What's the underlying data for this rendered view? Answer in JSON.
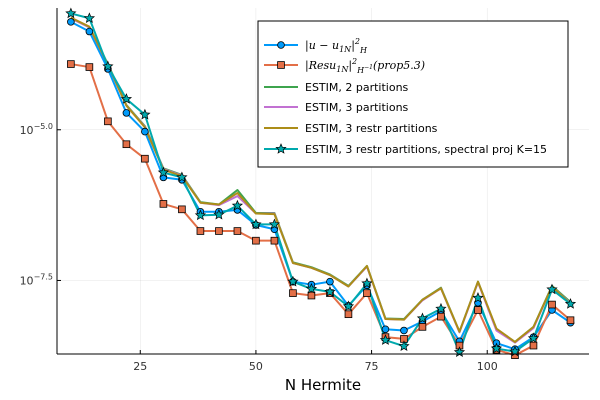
{
  "chart_data": {
    "type": "line",
    "xlabel": "N Hermite",
    "ylabel": "",
    "y_scale": "log10",
    "xlim": [
      7,
      122
    ],
    "ylim_log10": [
      -8.72,
      -2.98
    ],
    "x_ticks": [
      25,
      50,
      75,
      100
    ],
    "y_ticks": [
      {
        "log10": -5,
        "base": "10",
        "exp": "−5.0"
      },
      {
        "log10": -7.5,
        "base": "10",
        "exp": "−7.5"
      }
    ],
    "grid": true,
    "legend_position": "top-right",
    "x": [
      10,
      14,
      18,
      22,
      26,
      30,
      34,
      38,
      42,
      46,
      50,
      54,
      58,
      62,
      66,
      70,
      74,
      78,
      82,
      86,
      90,
      94,
      98,
      102,
      106,
      110,
      114,
      118
    ],
    "series": [
      {
        "label_parts": [
          "|u − u",
          "1N",
          "|",
          "2",
          "H"
        ],
        "color": "#009AFA",
        "marker": "circle",
        "line_width": 2,
        "values_log10": [
          -3.21,
          -3.37,
          -3.99,
          -4.72,
          -5.03,
          -5.79,
          -5.83,
          -6.36,
          -6.36,
          -6.33,
          -6.58,
          -6.65,
          -7.52,
          -7.57,
          -7.52,
          -7.92,
          -7.58,
          -8.31,
          -8.33,
          -8.18,
          -8.01,
          -8.51,
          -7.87,
          -8.54,
          -8.64,
          -8.44,
          -7.99,
          -8.2
        ]
      },
      {
        "label_parts": [
          "|Resu",
          "1N",
          "|",
          "2",
          "H",
          "−1",
          "(prop5.3)"
        ],
        "color": "#E36F47",
        "marker": "square",
        "line_width": 2,
        "values_log10": [
          -3.91,
          -3.96,
          -4.86,
          -5.24,
          -5.48,
          -6.23,
          -6.32,
          -6.68,
          -6.68,
          -6.68,
          -6.84,
          -6.84,
          -7.71,
          -7.75,
          -7.71,
          -8.06,
          -7.71,
          -8.44,
          -8.47,
          -8.27,
          -8.1,
          -8.58,
          -7.99,
          -8.65,
          -8.74,
          -8.58,
          -7.9,
          -8.16
        ]
      },
      {
        "label_parts": [
          "ESTIM, 2 partitions"
        ],
        "color": "#3EA44E",
        "marker": "none",
        "line_width": 2,
        "values_log10": [
          -3.15,
          -3.3,
          -3.91,
          -4.59,
          -4.94,
          -5.64,
          -5.75,
          -6.2,
          -6.24,
          -6.0,
          -6.38,
          -6.38,
          -7.2,
          -7.28,
          -7.4,
          -7.59,
          -7.26,
          -8.13,
          -8.14,
          -7.82,
          -7.62,
          -8.35,
          -7.52,
          -8.31,
          -8.52,
          -8.27,
          -7.59,
          -7.86
        ]
      },
      {
        "label_parts": [
          "ESTIM, 3 partitions"
        ],
        "color": "#C271D2",
        "marker": "none",
        "line_width": 2,
        "values_log10": [
          -3.15,
          -3.3,
          -3.92,
          -4.6,
          -4.95,
          -5.65,
          -5.76,
          -6.21,
          -6.25,
          -6.1,
          -6.39,
          -6.39,
          -7.21,
          -7.29,
          -7.41,
          -7.6,
          -7.27,
          -8.14,
          -8.15,
          -7.83,
          -7.63,
          -8.36,
          -7.53,
          -8.33,
          -8.53,
          -8.29,
          -7.6,
          -7.88
        ]
      },
      {
        "label_parts": [
          "ESTIM, 3 restr partitions"
        ],
        "color": "#AC8D18",
        "marker": "none",
        "line_width": 2,
        "values_log10": [
          -3.14,
          -3.29,
          -3.92,
          -4.6,
          -4.96,
          -5.66,
          -5.77,
          -6.21,
          -6.24,
          -6.05,
          -6.39,
          -6.4,
          -7.21,
          -7.29,
          -7.41,
          -7.6,
          -7.26,
          -8.14,
          -8.15,
          -7.82,
          -7.63,
          -8.35,
          -7.52,
          -8.3,
          -8.52,
          -8.27,
          -7.6,
          -7.89
        ]
      },
      {
        "label_parts": [
          "ESTIM, 3 restr partitions, spectral proj K=15"
        ],
        "color": "#00A9AD",
        "marker": "star",
        "line_width": 2,
        "values_log10": [
          -3.07,
          -3.15,
          -3.95,
          -4.49,
          -4.75,
          -5.71,
          -5.79,
          -6.42,
          -6.41,
          -6.26,
          -6.57,
          -6.57,
          -7.52,
          -7.64,
          -7.69,
          -7.93,
          -7.55,
          -8.49,
          -8.59,
          -8.13,
          -7.97,
          -8.69,
          -7.79,
          -8.63,
          -8.68,
          -8.46,
          -7.65,
          -7.89
        ]
      }
    ]
  }
}
